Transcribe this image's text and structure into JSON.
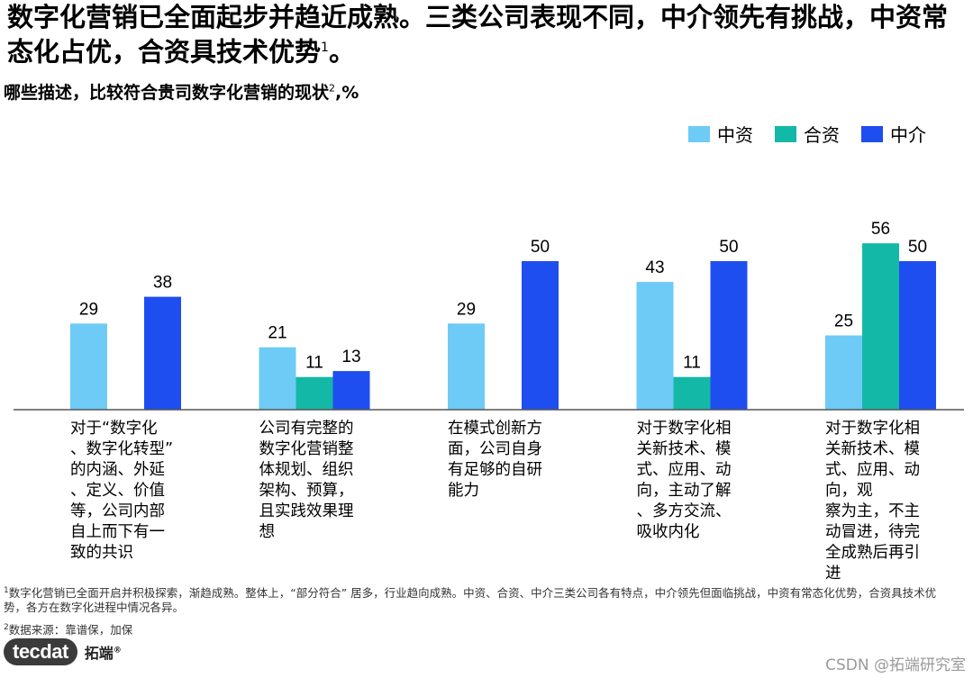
{
  "header": {
    "title": "数字化营销已全面起步并趋近成熟。三类公司表现不同，中介领先有挑战，中资常态化占优，合资具技术优势",
    "title_sup": "1",
    "title_end": "。",
    "subtitle": "哪些描述，比较符合贵司数字化营销的现状",
    "subtitle_sup": "2",
    "subtitle_unit": ",%"
  },
  "chart_data": {
    "type": "bar",
    "categories": [
      "对于“数字化、数字化转型”的内涵、外延、定义、价值等，公司内部自上而下有一致的共识",
      "公司有完整的数字化营销整体规划、组织架构、预算，且实践效果理想",
      "在模式创新方面，公司自身有足够的自研能力",
      "对于数字化相关新技术、模式、应用、动向，主动了解、多方交流、吸收内化",
      "对于数字化相关新技术、模式、应用、动向，观察为主，不主动冒进，待完全成熟后再引进"
    ],
    "category_lines": [
      [
        "对于“数字化",
        "、数字化转型”",
        "的内涵、外延",
        "、定义、价值",
        "等，公司内部",
        "自上而下有一",
        "致的共识"
      ],
      [
        "公司有完整的",
        "数字化营销整",
        "体规划、组织",
        "架构、预算，",
        "且实践效果理",
        "想"
      ],
      [
        "在模式创新方",
        "面，公司自身",
        "有足够的自研",
        "能力"
      ],
      [
        "对于数字化相",
        "关新技术、模",
        "式、应用、动",
        "向，主动了解",
        "、多方交流、",
        "吸收内化"
      ],
      [
        "对于数字化相",
        "关新技术、模",
        "式、应用、动",
        "向，观",
        "察为主，不主",
        "动冒进，待完",
        "全成熟后再引",
        "进"
      ]
    ],
    "series": [
      {
        "name": "中资",
        "color": "#6ecbf5",
        "values": [
          29,
          21,
          29,
          43,
          25
        ]
      },
      {
        "name": "合资",
        "color": "#14b8a6",
        "values": [
          null,
          11,
          null,
          11,
          56
        ]
      },
      {
        "name": "中介",
        "color": "#1f4ef0",
        "values": [
          38,
          13,
          50,
          50,
          50
        ]
      }
    ],
    "legend_position": "top-right",
    "grid": false
  },
  "footnotes": {
    "note1_sup": "1",
    "note1": "数字化营销已全面开启并积极探索，渐趋成熟。整体上，“部分符合” 居多，行业趋向成熟。中资、合资、中介三类公司各有特点，中介领先但面临挑战，中资有常态化优势，合资具技术优势，各方在数字化进程中情况各异。",
    "note2_sup": "2",
    "note2": "数据来源：靠谱保，加保"
  },
  "branding": {
    "logo_mark": "tecdat",
    "logo_text": "拓端",
    "logo_reg": "®",
    "watermark": "CSDN @拓端研究室"
  }
}
